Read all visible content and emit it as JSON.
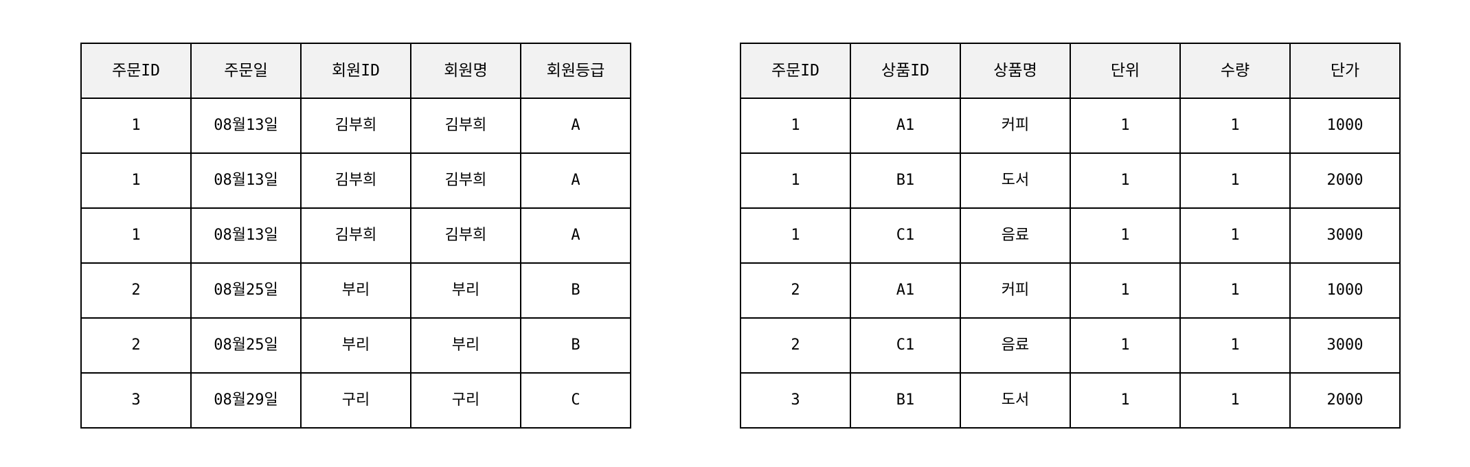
{
  "orders_table": {
    "headers": [
      "주문ID",
      "주문일",
      "회원ID",
      "회원명",
      "회원등급"
    ],
    "rows": [
      [
        "1",
        "08월13일",
        "김부희",
        "김부희",
        "A"
      ],
      [
        "1",
        "08월13일",
        "김부희",
        "김부희",
        "A"
      ],
      [
        "1",
        "08월13일",
        "김부희",
        "김부희",
        "A"
      ],
      [
        "2",
        "08월25일",
        "부리",
        "부리",
        "B"
      ],
      [
        "2",
        "08월25일",
        "부리",
        "부리",
        "B"
      ],
      [
        "3",
        "08월29일",
        "구리",
        "구리",
        "C"
      ]
    ]
  },
  "items_table": {
    "headers": [
      "주문ID",
      "상품ID",
      "상품명",
      "단위",
      "수량",
      "단가"
    ],
    "rows": [
      [
        "1",
        "A1",
        "커피",
        "1",
        "1",
        "1000"
      ],
      [
        "1",
        "B1",
        "도서",
        "1",
        "1",
        "2000"
      ],
      [
        "1",
        "C1",
        "음료",
        "1",
        "1",
        "3000"
      ],
      [
        "2",
        "A1",
        "커피",
        "1",
        "1",
        "1000"
      ],
      [
        "2",
        "C1",
        "음료",
        "1",
        "1",
        "3000"
      ],
      [
        "3",
        "B1",
        "도서",
        "1",
        "1",
        "2000"
      ]
    ]
  },
  "colors": {
    "header_background": "#f2f2f2",
    "border": "#000000",
    "text": "#000000"
  }
}
